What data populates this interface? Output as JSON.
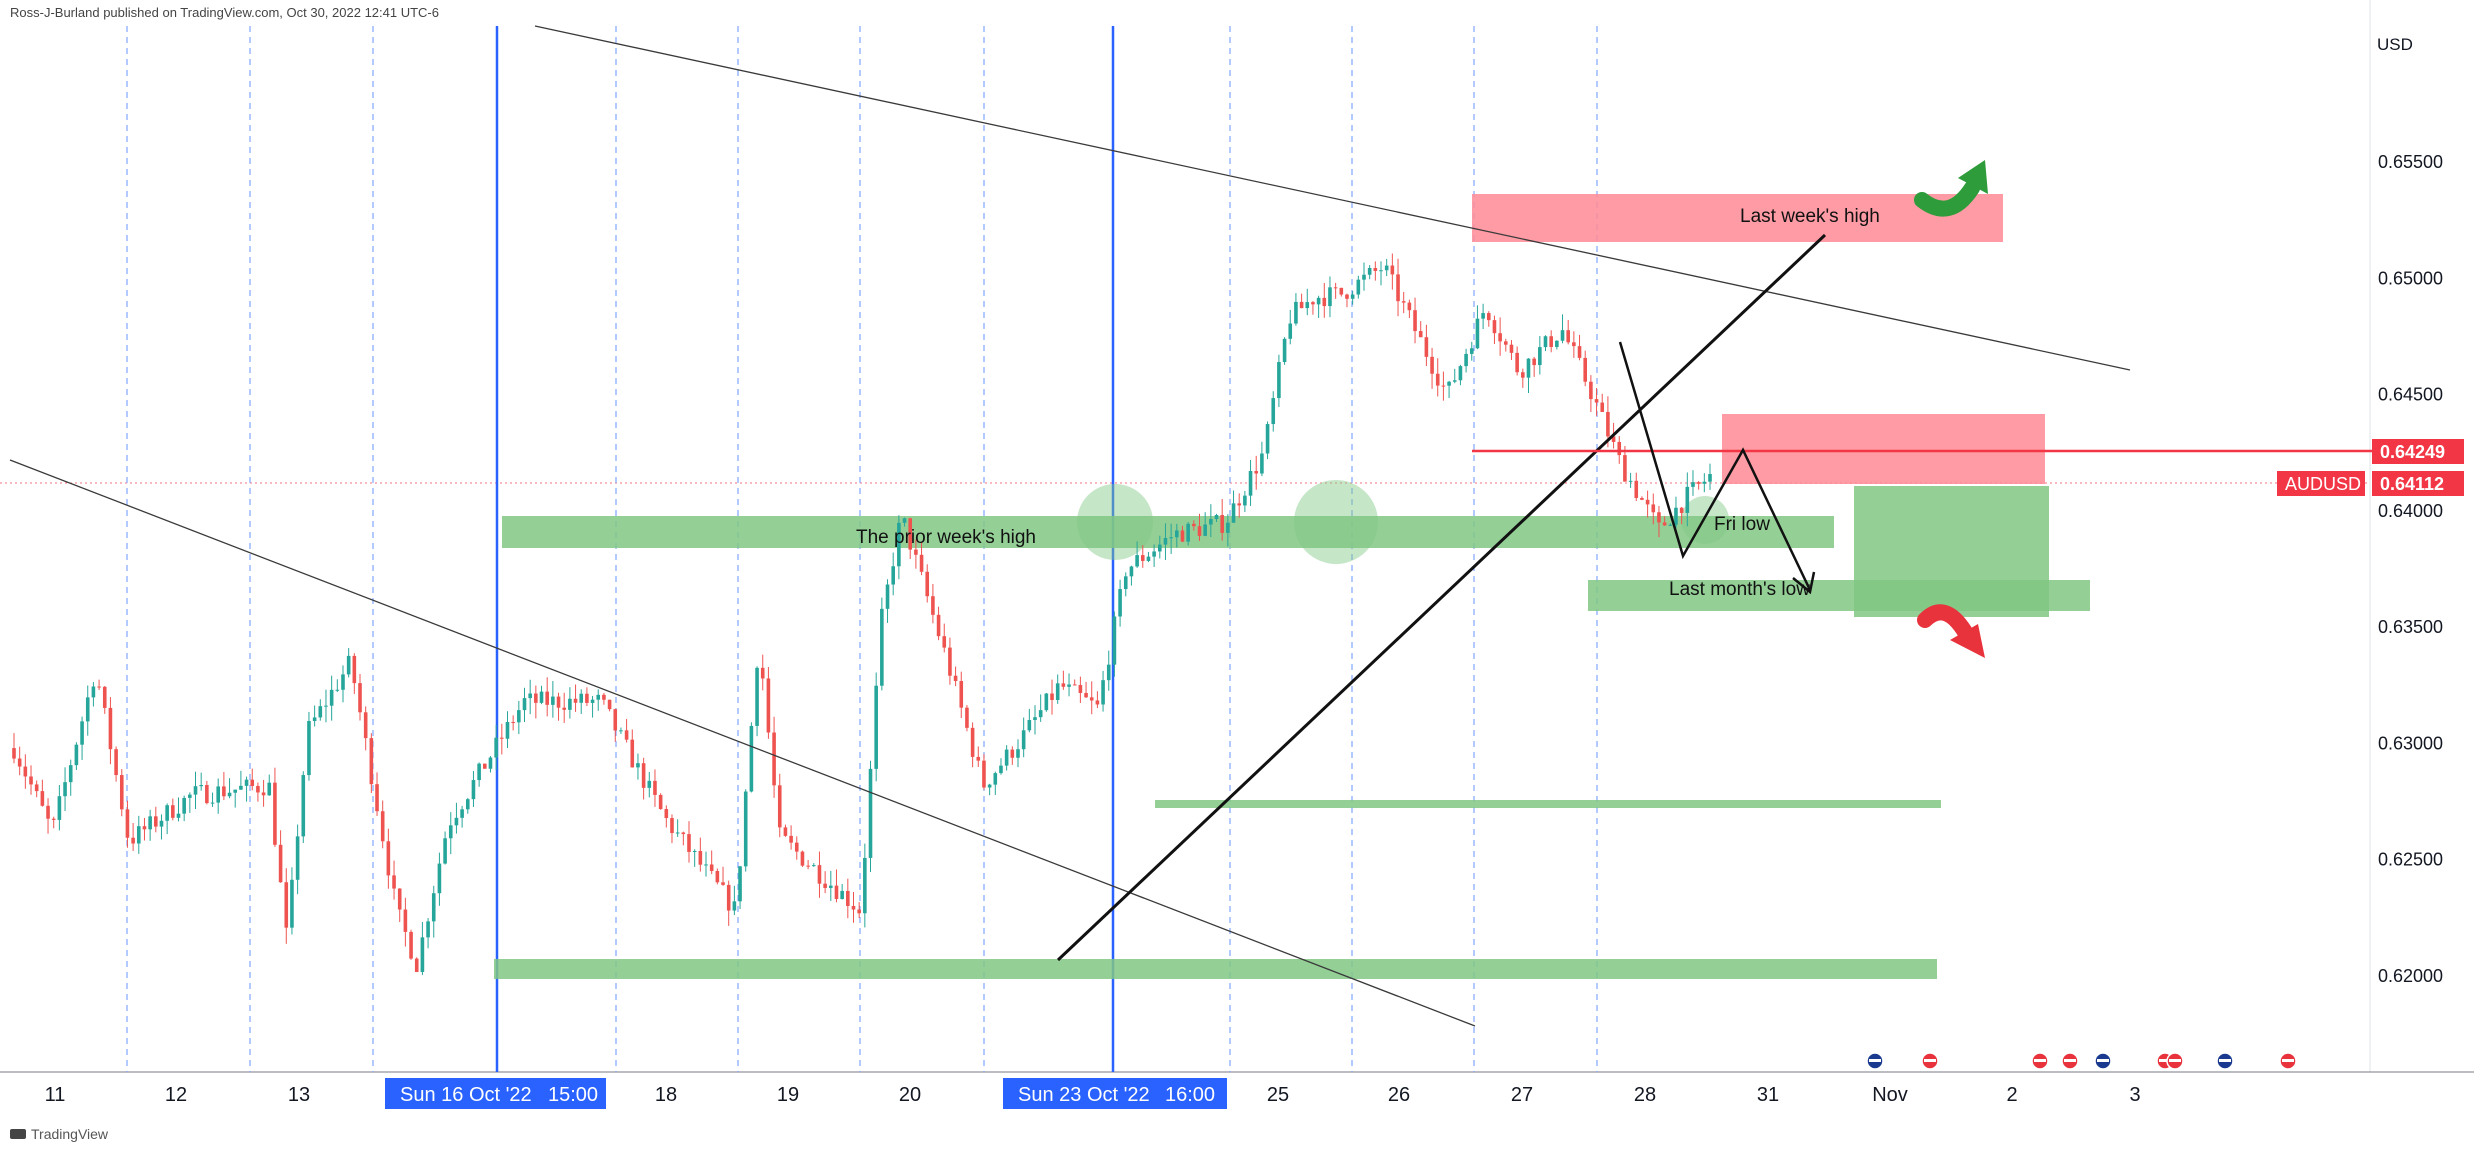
{
  "header": {
    "published": "Ross-J-Burland published on TradingView.com, Oct 30, 2022 12:41 UTC-6"
  },
  "footer": {
    "brand": "TradingView"
  },
  "colors": {
    "up": "#26a69a",
    "down": "#ef5350",
    "zone_green": "#81c784",
    "zone_red": "#ff8a95",
    "level_red": "#f23645",
    "vline_blue": "#2962ff",
    "grid_blue": "#7fa7ff",
    "arrow_green": "#2e9c3a",
    "arrow_red": "#e8323c"
  },
  "chart_data": {
    "type": "candlestick",
    "symbol": "AUDUSD",
    "currency": "USD",
    "ylim": [
      0.617,
      0.662
    ],
    "y_ticks": [
      "0.65500",
      "0.65000",
      "0.64500",
      "0.64000",
      "0.63500",
      "0.63000",
      "0.62500",
      "0.62000"
    ],
    "x_ticks": [
      "11",
      "12",
      "13",
      "18",
      "19",
      "20",
      "25",
      "26",
      "27",
      "28",
      "31",
      "Nov",
      "2",
      "3"
    ],
    "x_badges": [
      {
        "date": "Sun 16 Oct '22",
        "time": "15:00"
      },
      {
        "date": "Sun 23 Oct '22",
        "time": "16:00"
      }
    ],
    "price_labels": [
      {
        "name": "level",
        "value": "0.64249"
      },
      {
        "name": "AUDUSD",
        "value": "0.64112"
      }
    ],
    "annotations": [
      {
        "text": "Last week's high",
        "y_low": 0.6512,
        "y_high": 0.6532
      },
      {
        "text": "The prior week's high",
        "y_low": 0.6384,
        "y_high": 0.6398
      },
      {
        "text": "Fri low",
        "y_low": 0.6384,
        "y_high": 0.6398
      },
      {
        "text": "Last month's low",
        "y_low": 0.636,
        "y_high": 0.6372
      }
    ],
    "levels": [
      {
        "name": "red-level",
        "y": 0.64249
      },
      {
        "name": "lower-support",
        "y": 0.6275
      },
      {
        "name": "bottom-support",
        "y": 0.6208
      }
    ],
    "candles": {
      "count": 300,
      "anchors": [
        [
          0,
          0.6298
        ],
        [
          15,
          0.6262
        ],
        [
          32,
          0.6332
        ],
        [
          45,
          0.6258
        ],
        [
          70,
          0.6278
        ],
        [
          100,
          0.6282
        ],
        [
          107,
          0.6215
        ],
        [
          115,
          0.6305
        ],
        [
          132,
          0.6335
        ],
        [
          150,
          0.6228
        ],
        [
          158,
          0.6205
        ],
        [
          170,
          0.6265
        ],
        [
          200,
          0.6318
        ],
        [
          230,
          0.6318
        ],
        [
          255,
          0.6268
        ],
        [
          283,
          0.6228
        ],
        [
          292,
          0.6345
        ],
        [
          300,
          0.626
        ],
        [
          332,
          0.6228
        ],
        [
          340,
          0.6352
        ],
        [
          348,
          0.6398
        ],
        [
          366,
          0.6335
        ],
        [
          380,
          0.6282
        ],
        [
          395,
          0.6302
        ],
        [
          410,
          0.6325
        ],
        [
          425,
          0.6315
        ],
        [
          436,
          0.6375
        ],
        [
          455,
          0.639
        ],
        [
          475,
          0.6395
        ],
        [
          490,
          0.6425
        ],
        [
          500,
          0.6483
        ],
        [
          510,
          0.6492
        ],
        [
          520,
          0.6493
        ],
        [
          537,
          0.6505
        ],
        [
          552,
          0.6472
        ],
        [
          562,
          0.645
        ],
        [
          577,
          0.6488
        ],
        [
          590,
          0.646
        ],
        [
          607,
          0.6478
        ],
        [
          618,
          0.6452
        ],
        [
          630,
          0.642
        ],
        [
          645,
          0.6392
        ],
        [
          655,
          0.6405
        ],
        [
          665,
          0.6415
        ]
      ]
    }
  }
}
